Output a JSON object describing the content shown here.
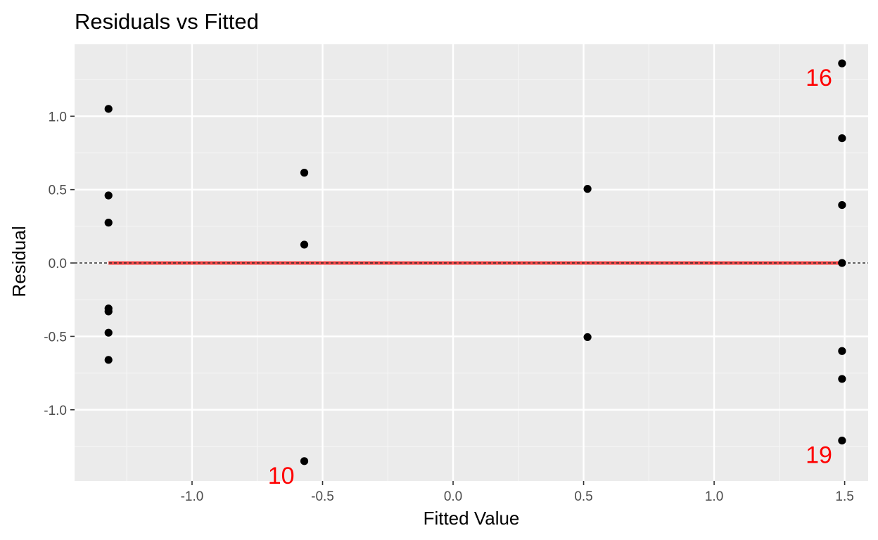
{
  "chart_data": {
    "type": "scatter",
    "title": "Residuals vs Fitted",
    "xlabel": "Fitted Value",
    "ylabel": "Residual",
    "xlim": [
      -1.45,
      1.59
    ],
    "ylim": [
      -1.485,
      1.49
    ],
    "x_ticks": [
      -1.0,
      -0.5,
      0.0,
      0.5,
      1.0,
      1.5
    ],
    "x_tick_labels": [
      "-1.0",
      "-0.5",
      "0.0",
      "0.5",
      "1.0",
      "1.5"
    ],
    "y_ticks": [
      -1.0,
      -0.5,
      0.0,
      0.5,
      1.0
    ],
    "y_tick_labels": [
      "-1.0",
      "-0.5",
      "0.0",
      "0.5",
      "1.0"
    ],
    "grid": true,
    "reference_line": {
      "y": 0,
      "style": "dashed",
      "color": "#000000"
    },
    "smooth_line": {
      "x": [
        -1.32,
        1.49
      ],
      "y": [
        0,
        0
      ],
      "color": "#ff0000"
    },
    "points": [
      {
        "x": -1.32,
        "y": 1.05
      },
      {
        "x": -1.32,
        "y": 0.46
      },
      {
        "x": -1.32,
        "y": 0.275
      },
      {
        "x": -1.32,
        "y": -0.31
      },
      {
        "x": -1.32,
        "y": -0.33
      },
      {
        "x": -1.32,
        "y": -0.475
      },
      {
        "x": -1.32,
        "y": -0.66
      },
      {
        "x": -0.57,
        "y": 0.615
      },
      {
        "x": -0.57,
        "y": 0.125
      },
      {
        "x": -0.57,
        "y": -1.35
      },
      {
        "x": 0.515,
        "y": 0.505
      },
      {
        "x": 0.515,
        "y": -0.505
      },
      {
        "x": 1.49,
        "y": 1.36
      },
      {
        "x": 1.49,
        "y": 0.85
      },
      {
        "x": 1.49,
        "y": 0.395
      },
      {
        "x": 1.49,
        "y": 0.0
      },
      {
        "x": 1.49,
        "y": -0.6
      },
      {
        "x": 1.49,
        "y": -0.79
      },
      {
        "x": 1.49,
        "y": -1.21
      }
    ],
    "annotations": [
      {
        "text": "16",
        "x": 1.49,
        "y": 1.36,
        "color": "#ff0000"
      },
      {
        "text": "10",
        "x": -0.57,
        "y": -1.35,
        "color": "#ff0000"
      },
      {
        "text": "19",
        "x": 1.49,
        "y": -1.21,
        "color": "#ff0000"
      }
    ],
    "colors": {
      "panel_background": "#ebebeb",
      "grid_major": "#ffffff",
      "grid_minor": "#f5f5f5",
      "points": "#000000",
      "smooth_line": "#ff0000"
    }
  }
}
